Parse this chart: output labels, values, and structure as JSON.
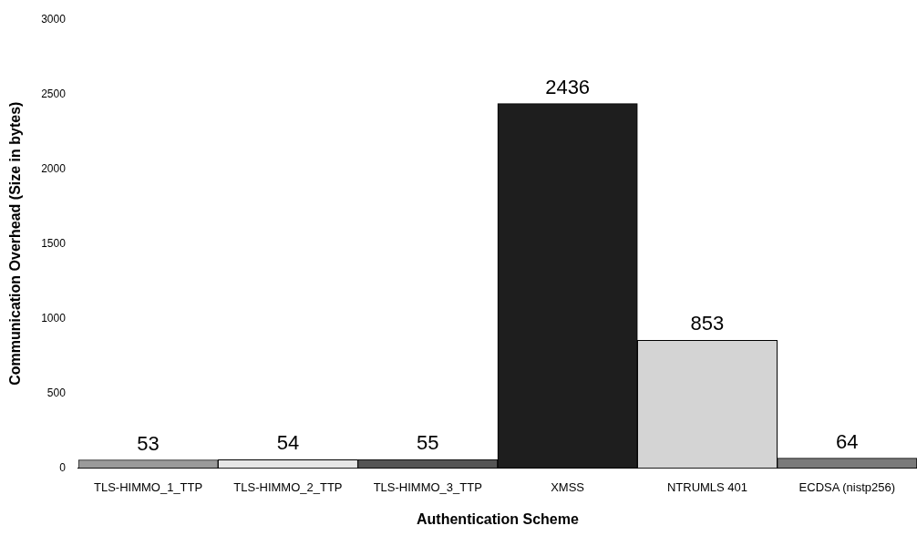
{
  "chart_data": {
    "type": "bar",
    "xlabel": "Authentication Scheme",
    "ylabel": "Communication Overhead (Size in bytes)",
    "categories": [
      "TLS-HIMMO_1_TTP",
      "TLS-HIMMO_2_TTP",
      "TLS-HIMMO_3_TTP",
      "XMSS",
      "NTRUMLS 401",
      "ECDSA (nistp256)"
    ],
    "values": [
      53,
      54,
      55,
      2436,
      853,
      64
    ],
    "colors": [
      "#9a9a9a",
      "#e6e6e6",
      "#555555",
      "#1e1e1e",
      "#d4d4d4",
      "#7a7a7a"
    ],
    "ylim": [
      0,
      3000
    ],
    "yticks": [
      0,
      500,
      1000,
      1500,
      2000,
      2500,
      3000
    ],
    "grid": false,
    "legend": false,
    "data_labels": true
  }
}
